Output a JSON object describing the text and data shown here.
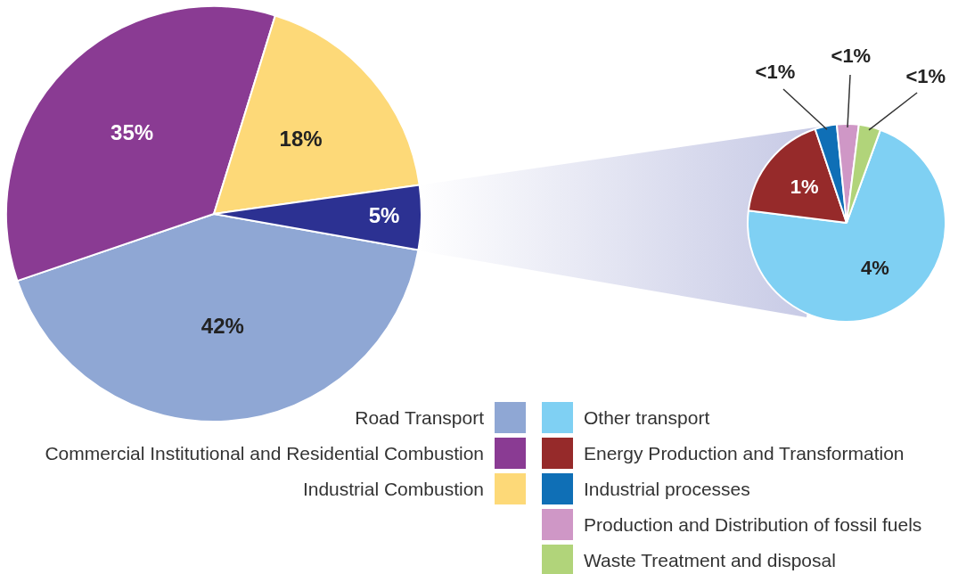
{
  "chart_data": [
    {
      "type": "pie",
      "categories": [
        "Road Transport",
        "Commercial Institutional and Residential Combustion",
        "Industrial Combustion",
        null
      ],
      "values": [
        42,
        35,
        18,
        5
      ],
      "colors": [
        "#8fa7d4",
        "#8a3b93",
        "#fdd978",
        "#2c3192"
      ],
      "value_labels": [
        "42%",
        "35%",
        "18%",
        "5%"
      ],
      "legend": "bottom"
    },
    {
      "type": "pie",
      "categories": [
        "Other transport",
        "Energy Production and Transformation",
        "Industrial processes",
        "Production and Distribution of fossil fuels",
        "Waste Treatment and disposal"
      ],
      "values": [
        4,
        1,
        0.2,
        0.2,
        0.2
      ],
      "colors": [
        "#7fd0f3",
        "#962a2a",
        "#0f6fb6",
        "#cf97c6",
        "#b1d47a"
      ],
      "value_labels": [
        "4%",
        "1%",
        "<1%",
        "<1%",
        "<1%"
      ],
      "legend": "bottom"
    }
  ]
}
